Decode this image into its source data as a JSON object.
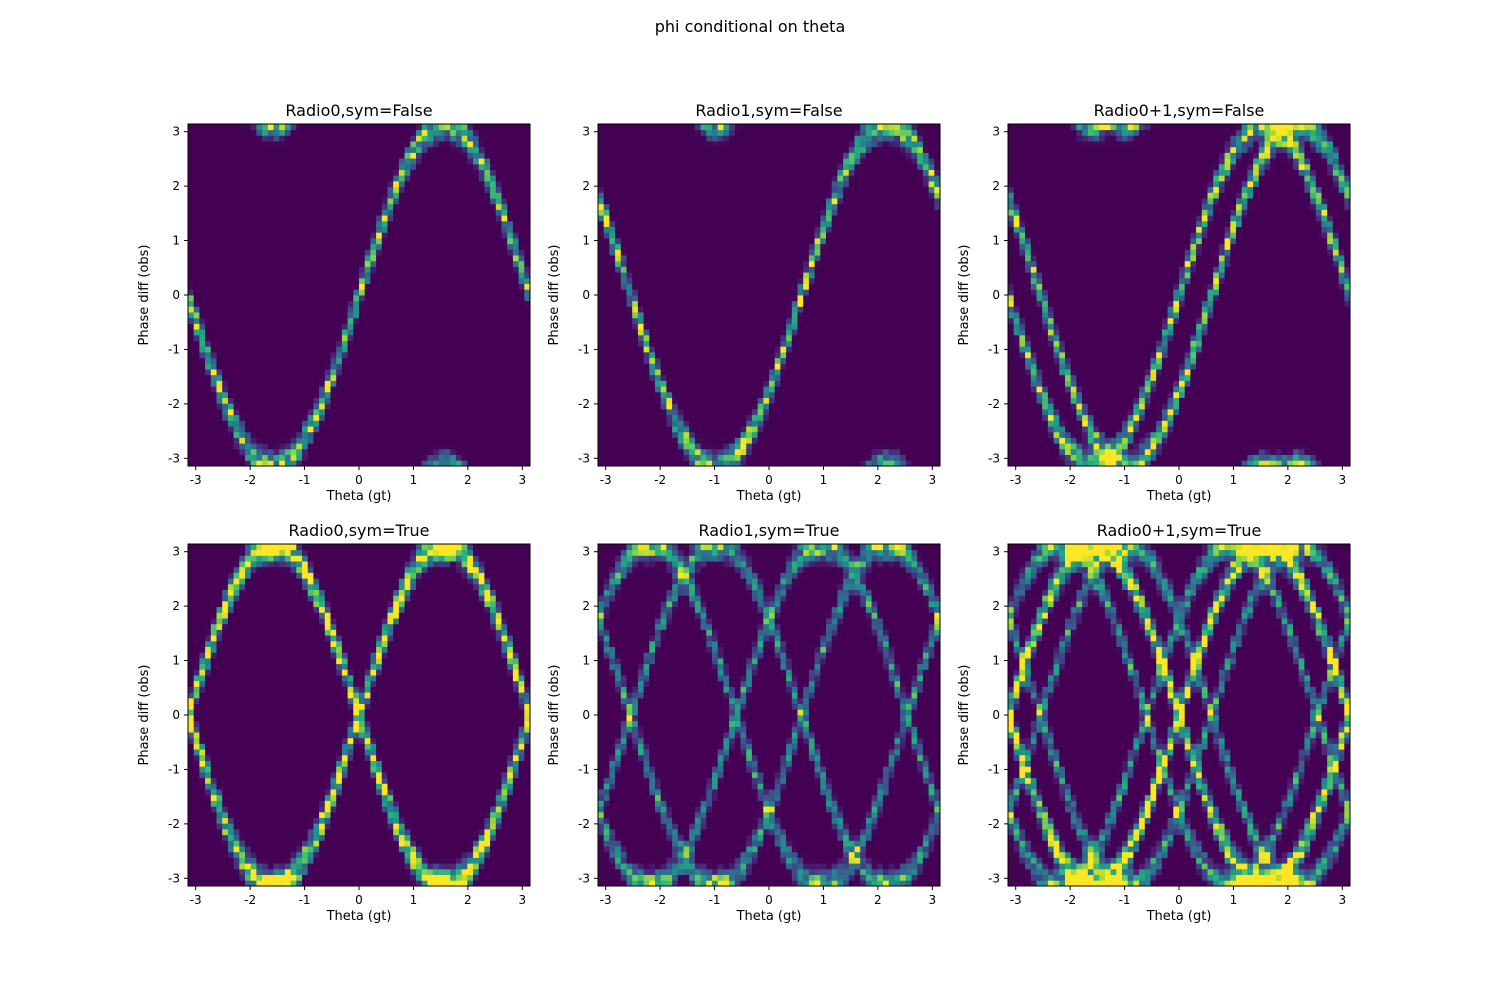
{
  "figure": {
    "title": "phi conditional on theta"
  },
  "chart_data": [
    {
      "type": "heatmap",
      "title": "Radio0,sym=False",
      "xlabel": "Theta (gt)",
      "ylabel": "Phase diff (obs)",
      "xlim": [
        -3.14159,
        3.14159
      ],
      "ylim": [
        -3.14159,
        3.14159
      ],
      "xticks": [
        "-3",
        "-2",
        "-1",
        "0",
        "1",
        "2",
        "3"
      ],
      "yticks": [
        "-3",
        "-2",
        "-1",
        "0",
        "1",
        "2",
        "3"
      ],
      "colormap": "viridis",
      "pattern": "r0",
      "sym": false
    },
    {
      "type": "heatmap",
      "title": "Radio1,sym=False",
      "xlabel": "Theta (gt)",
      "ylabel": "Phase diff (obs)",
      "xlim": [
        -3.14159,
        3.14159
      ],
      "ylim": [
        -3.14159,
        3.14159
      ],
      "xticks": [
        "-3",
        "-2",
        "-1",
        "0",
        "1",
        "2",
        "3"
      ],
      "yticks": [
        "-3",
        "-2",
        "-1",
        "0",
        "1",
        "2",
        "3"
      ],
      "colormap": "viridis",
      "pattern": "r1",
      "sym": false
    },
    {
      "type": "heatmap",
      "title": "Radio0+1,sym=False",
      "xlabel": "Theta (gt)",
      "ylabel": "Phase diff (obs)",
      "xlim": [
        -3.14159,
        3.14159
      ],
      "ylim": [
        -3.14159,
        3.14159
      ],
      "xticks": [
        "-3",
        "-2",
        "-1",
        "0",
        "1",
        "2",
        "3"
      ],
      "yticks": [
        "-3",
        "-2",
        "-1",
        "0",
        "1",
        "2",
        "3"
      ],
      "colormap": "viridis",
      "pattern": "both",
      "sym": false
    },
    {
      "type": "heatmap",
      "title": "Radio0,sym=True",
      "xlabel": "Theta (gt)",
      "ylabel": "Phase diff (obs)",
      "xlim": [
        -3.14159,
        3.14159
      ],
      "ylim": [
        -3.14159,
        3.14159
      ],
      "xticks": [
        "-3",
        "-2",
        "-1",
        "0",
        "1",
        "2",
        "3"
      ],
      "yticks": [
        "-3",
        "-2",
        "-1",
        "0",
        "1",
        "2",
        "3"
      ],
      "colormap": "viridis",
      "pattern": "r0",
      "sym": true
    },
    {
      "type": "heatmap",
      "title": "Radio1,sym=True",
      "xlabel": "Theta (gt)",
      "ylabel": "Phase diff (obs)",
      "xlim": [
        -3.14159,
        3.14159
      ],
      "ylim": [
        -3.14159,
        3.14159
      ],
      "xticks": [
        "-3",
        "-2",
        "-1",
        "0",
        "1",
        "2",
        "3"
      ],
      "yticks": [
        "-3",
        "-2",
        "-1",
        "0",
        "1",
        "2",
        "3"
      ],
      "colormap": "viridis",
      "pattern": "r1",
      "sym": true
    },
    {
      "type": "heatmap",
      "title": "Radio0+1,sym=True",
      "xlabel": "Theta (gt)",
      "ylabel": "Phase diff (obs)",
      "xlim": [
        -3.14159,
        3.14159
      ],
      "ylim": [
        -3.14159,
        3.14159
      ],
      "xticks": [
        "-3",
        "-2",
        "-1",
        "0",
        "1",
        "2",
        "3"
      ],
      "yticks": [
        "-3",
        "-2",
        "-1",
        "0",
        "1",
        "2",
        "3"
      ],
      "colormap": "viridis",
      "pattern": "both",
      "sym": true
    }
  ]
}
